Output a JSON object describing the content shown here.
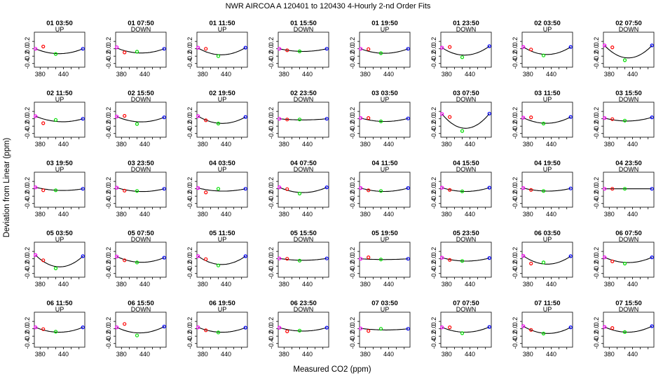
{
  "title": "NWR   AIRCOA A   120401 to 120430   4-Hourly 2-nd Order Fits",
  "xlabel": "Measured CO2 (ppm)",
  "ylabel": "Deviation from Linear (ppm)",
  "colors": {
    "curve": "#000000",
    "low": "#ff00ff",
    "mid1": "#ff0000",
    "mid2": "#00dd00",
    "high": "#0000ff",
    "frame": "#000000"
  },
  "chart_data": {
    "type": "scatter",
    "layout": {
      "rows": 5,
      "cols": 8
    },
    "xlim": [
      365,
      495
    ],
    "ylim": [
      -0.5,
      0.45
    ],
    "xticks": [
      380,
      400,
      420,
      440,
      460,
      480
    ],
    "xtick_labels": [
      "380",
      "440"
    ],
    "xtick_label_values": [
      380,
      440
    ],
    "yticks": [
      -0.4,
      -0.2,
      0.0,
      0.2
    ],
    "ytick_labels": [
      "-0.4",
      "-0.2",
      "0.0",
      "0.2"
    ],
    "standard_x": [
      368,
      388,
      420,
      490
    ],
    "panels": [
      {
        "time": "01 03:50",
        "dir": "UP",
        "pts": [
          0.0,
          0.06,
          -0.14,
          0.0
        ],
        "fit": [
          0.0,
          -0.09,
          -0.13,
          0.0
        ]
      },
      {
        "time": "01 07:50",
        "dir": "DOWN",
        "pts": [
          0.04,
          -0.1,
          -0.08,
          0.0
        ],
        "fit": [
          0.02,
          -0.07,
          -0.11,
          0.0
        ]
      },
      {
        "time": "01 11:50",
        "dir": "UP",
        "pts": [
          0.03,
          0.0,
          -0.2,
          0.03
        ],
        "fit": [
          0.02,
          -0.1,
          -0.16,
          0.03
        ]
      },
      {
        "time": "01 15:50",
        "dir": "DOWN",
        "pts": [
          0.0,
          -0.04,
          -0.07,
          0.0
        ],
        "fit": [
          0.0,
          -0.05,
          -0.07,
          0.0
        ]
      },
      {
        "time": "01 19:50",
        "dir": "UP",
        "pts": [
          0.0,
          -0.01,
          -0.12,
          0.0
        ],
        "fit": [
          0.0,
          -0.08,
          -0.12,
          0.0
        ]
      },
      {
        "time": "01 23:50",
        "dir": "DOWN",
        "pts": [
          0.03,
          0.05,
          -0.23,
          0.07
        ],
        "fit": [
          0.03,
          -0.1,
          -0.17,
          0.07
        ]
      },
      {
        "time": "02 03:50",
        "dir": "UP",
        "pts": [
          0.05,
          -0.02,
          -0.18,
          0.05
        ],
        "fit": [
          0.05,
          -0.08,
          -0.15,
          0.05
        ]
      },
      {
        "time": "02 07:50",
        "dir": "DOWN",
        "pts": [
          0.09,
          0.04,
          -0.31,
          0.09
        ],
        "fit": [
          0.09,
          -0.14,
          -0.24,
          0.09
        ]
      },
      {
        "time": "02 11:50",
        "dir": "UP",
        "pts": [
          0.07,
          -0.12,
          -0.03,
          0.0
        ],
        "fit": [
          0.07,
          -0.03,
          -0.07,
          0.0
        ]
      },
      {
        "time": "02 15:50",
        "dir": "DOWN",
        "pts": [
          0.06,
          0.08,
          -0.14,
          0.04
        ],
        "fit": [
          0.06,
          -0.03,
          -0.08,
          0.04
        ]
      },
      {
        "time": "02 19:50",
        "dir": "UP",
        "pts": [
          0.07,
          -0.04,
          -0.13,
          0.05
        ],
        "fit": [
          0.07,
          -0.06,
          -0.12,
          0.05
        ]
      },
      {
        "time": "02 23:50",
        "dir": "DOWN",
        "pts": [
          0.0,
          -0.02,
          -0.02,
          0.0
        ],
        "fit": [
          0.0,
          -0.02,
          -0.03,
          0.0
        ]
      },
      {
        "time": "03 03:50",
        "dir": "UP",
        "pts": [
          0.02,
          0.02,
          -0.07,
          0.01
        ],
        "fit": [
          0.02,
          -0.04,
          -0.07,
          0.01
        ]
      },
      {
        "time": "03 07:50",
        "dir": "DOWN",
        "pts": [
          0.13,
          0.05,
          -0.33,
          0.14
        ],
        "fit": [
          0.13,
          -0.15,
          -0.25,
          0.14
        ]
      },
      {
        "time": "03 11:50",
        "dir": "UP",
        "pts": [
          0.03,
          0.04,
          -0.13,
          0.05
        ],
        "fit": [
          0.03,
          -0.07,
          -0.12,
          0.05
        ]
      },
      {
        "time": "03 15:50",
        "dir": "DOWN",
        "pts": [
          0.02,
          -0.01,
          -0.05,
          0.04
        ],
        "fit": [
          0.02,
          -0.04,
          -0.06,
          0.04
        ]
      },
      {
        "time": "03 19:50",
        "dir": "UP",
        "pts": [
          0.04,
          -0.04,
          -0.04,
          0.0
        ],
        "fit": [
          0.04,
          -0.02,
          -0.04,
          0.0
        ]
      },
      {
        "time": "03 23:50",
        "dir": "DOWN",
        "pts": [
          0.03,
          -0.05,
          -0.06,
          0.0
        ],
        "fit": [
          0.03,
          -0.04,
          -0.07,
          0.0
        ]
      },
      {
        "time": "04 03:50",
        "dir": "UP",
        "pts": [
          0.02,
          -0.1,
          0.0,
          0.0
        ],
        "fit": [
          0.02,
          -0.03,
          -0.06,
          0.0
        ]
      },
      {
        "time": "04 07:50",
        "dir": "DOWN",
        "pts": [
          0.04,
          -0.01,
          -0.13,
          0.04
        ],
        "fit": [
          0.04,
          -0.06,
          -0.1,
          0.04
        ]
      },
      {
        "time": "04 11:50",
        "dir": "UP",
        "pts": [
          0.02,
          -0.04,
          -0.06,
          0.02
        ],
        "fit": [
          0.02,
          -0.04,
          -0.07,
          0.02
        ]
      },
      {
        "time": "04 15:50",
        "dir": "DOWN",
        "pts": [
          0.03,
          -0.03,
          -0.07,
          0.03
        ],
        "fit": [
          0.03,
          -0.04,
          -0.07,
          0.03
        ]
      },
      {
        "time": "04 19:50",
        "dir": "UP",
        "pts": [
          0.02,
          -0.03,
          -0.06,
          0.01
        ],
        "fit": [
          0.02,
          -0.03,
          -0.06,
          0.01
        ]
      },
      {
        "time": "04 23:50",
        "dir": "DOWN",
        "pts": [
          0.0,
          0.0,
          0.0,
          0.0
        ],
        "fit": [
          0.0,
          0.0,
          0.0,
          0.0
        ]
      },
      {
        "time": "05 03:50",
        "dir": "UP",
        "pts": [
          0.1,
          -0.04,
          -0.26,
          0.07
        ],
        "fit": [
          0.1,
          -0.11,
          -0.21,
          0.07
        ]
      },
      {
        "time": "05 07:50",
        "dir": "DOWN",
        "pts": [
          0.06,
          -0.04,
          -0.1,
          0.03
        ],
        "fit": [
          0.06,
          -0.05,
          -0.09,
          0.03
        ]
      },
      {
        "time": "05 11:50",
        "dir": "UP",
        "pts": [
          0.07,
          -0.01,
          -0.18,
          0.07
        ],
        "fit": [
          0.07,
          -0.09,
          -0.15,
          0.07
        ]
      },
      {
        "time": "05 15:50",
        "dir": "DOWN",
        "pts": [
          0.01,
          0.0,
          -0.05,
          0.01
        ],
        "fit": [
          0.01,
          -0.02,
          -0.04,
          0.01
        ]
      },
      {
        "time": "05 19:50",
        "dir": "UP",
        "pts": [
          0.0,
          0.04,
          -0.02,
          0.0
        ],
        "fit": [
          0.0,
          -0.01,
          -0.02,
          0.0
        ]
      },
      {
        "time": "05 23:50",
        "dir": "DOWN",
        "pts": [
          0.03,
          -0.03,
          -0.06,
          0.02
        ],
        "fit": [
          0.03,
          -0.03,
          -0.06,
          0.02
        ]
      },
      {
        "time": "06 03:50",
        "dir": "UP",
        "pts": [
          0.08,
          -0.13,
          -0.1,
          0.07
        ],
        "fit": [
          0.08,
          -0.09,
          -0.14,
          0.07
        ]
      },
      {
        "time": "06 07:50",
        "dir": "DOWN",
        "pts": [
          0.04,
          -0.07,
          -0.13,
          0.04
        ],
        "fit": [
          0.04,
          -0.07,
          -0.1,
          0.04
        ]
      },
      {
        "time": "06 11:50",
        "dir": "UP",
        "pts": [
          0.04,
          -0.01,
          -0.08,
          0.04
        ],
        "fit": [
          0.04,
          -0.06,
          -0.09,
          0.04
        ]
      },
      {
        "time": "06 15:50",
        "dir": "DOWN",
        "pts": [
          0.04,
          0.13,
          -0.18,
          0.06
        ],
        "fit": [
          0.04,
          -0.06,
          -0.11,
          0.06
        ]
      },
      {
        "time": "06 19:50",
        "dir": "UP",
        "pts": [
          0.04,
          -0.04,
          -0.1,
          0.03
        ],
        "fit": [
          0.04,
          -0.06,
          -0.09,
          0.03
        ]
      },
      {
        "time": "06 23:50",
        "dir": "DOWN",
        "pts": [
          0.03,
          -0.07,
          -0.05,
          0.03
        ],
        "fit": [
          0.03,
          -0.04,
          -0.06,
          0.03
        ]
      },
      {
        "time": "07 03:50",
        "dir": "UP",
        "pts": [
          0.01,
          -0.06,
          0.0,
          0.0
        ],
        "fit": [
          0.01,
          -0.02,
          -0.03,
          0.0
        ]
      },
      {
        "time": "07 07:50",
        "dir": "DOWN",
        "pts": [
          0.04,
          0.04,
          -0.12,
          0.05
        ],
        "fit": [
          0.04,
          -0.05,
          -0.09,
          0.05
        ]
      },
      {
        "time": "07 11:50",
        "dir": "UP",
        "pts": [
          0.07,
          -0.03,
          -0.13,
          0.04
        ],
        "fit": [
          0.07,
          -0.07,
          -0.12,
          0.04
        ]
      },
      {
        "time": "07 15:50",
        "dir": "DOWN",
        "pts": [
          0.05,
          0.02,
          -0.09,
          0.07
        ],
        "fit": [
          0.05,
          -0.06,
          -0.09,
          0.07
        ]
      }
    ]
  }
}
